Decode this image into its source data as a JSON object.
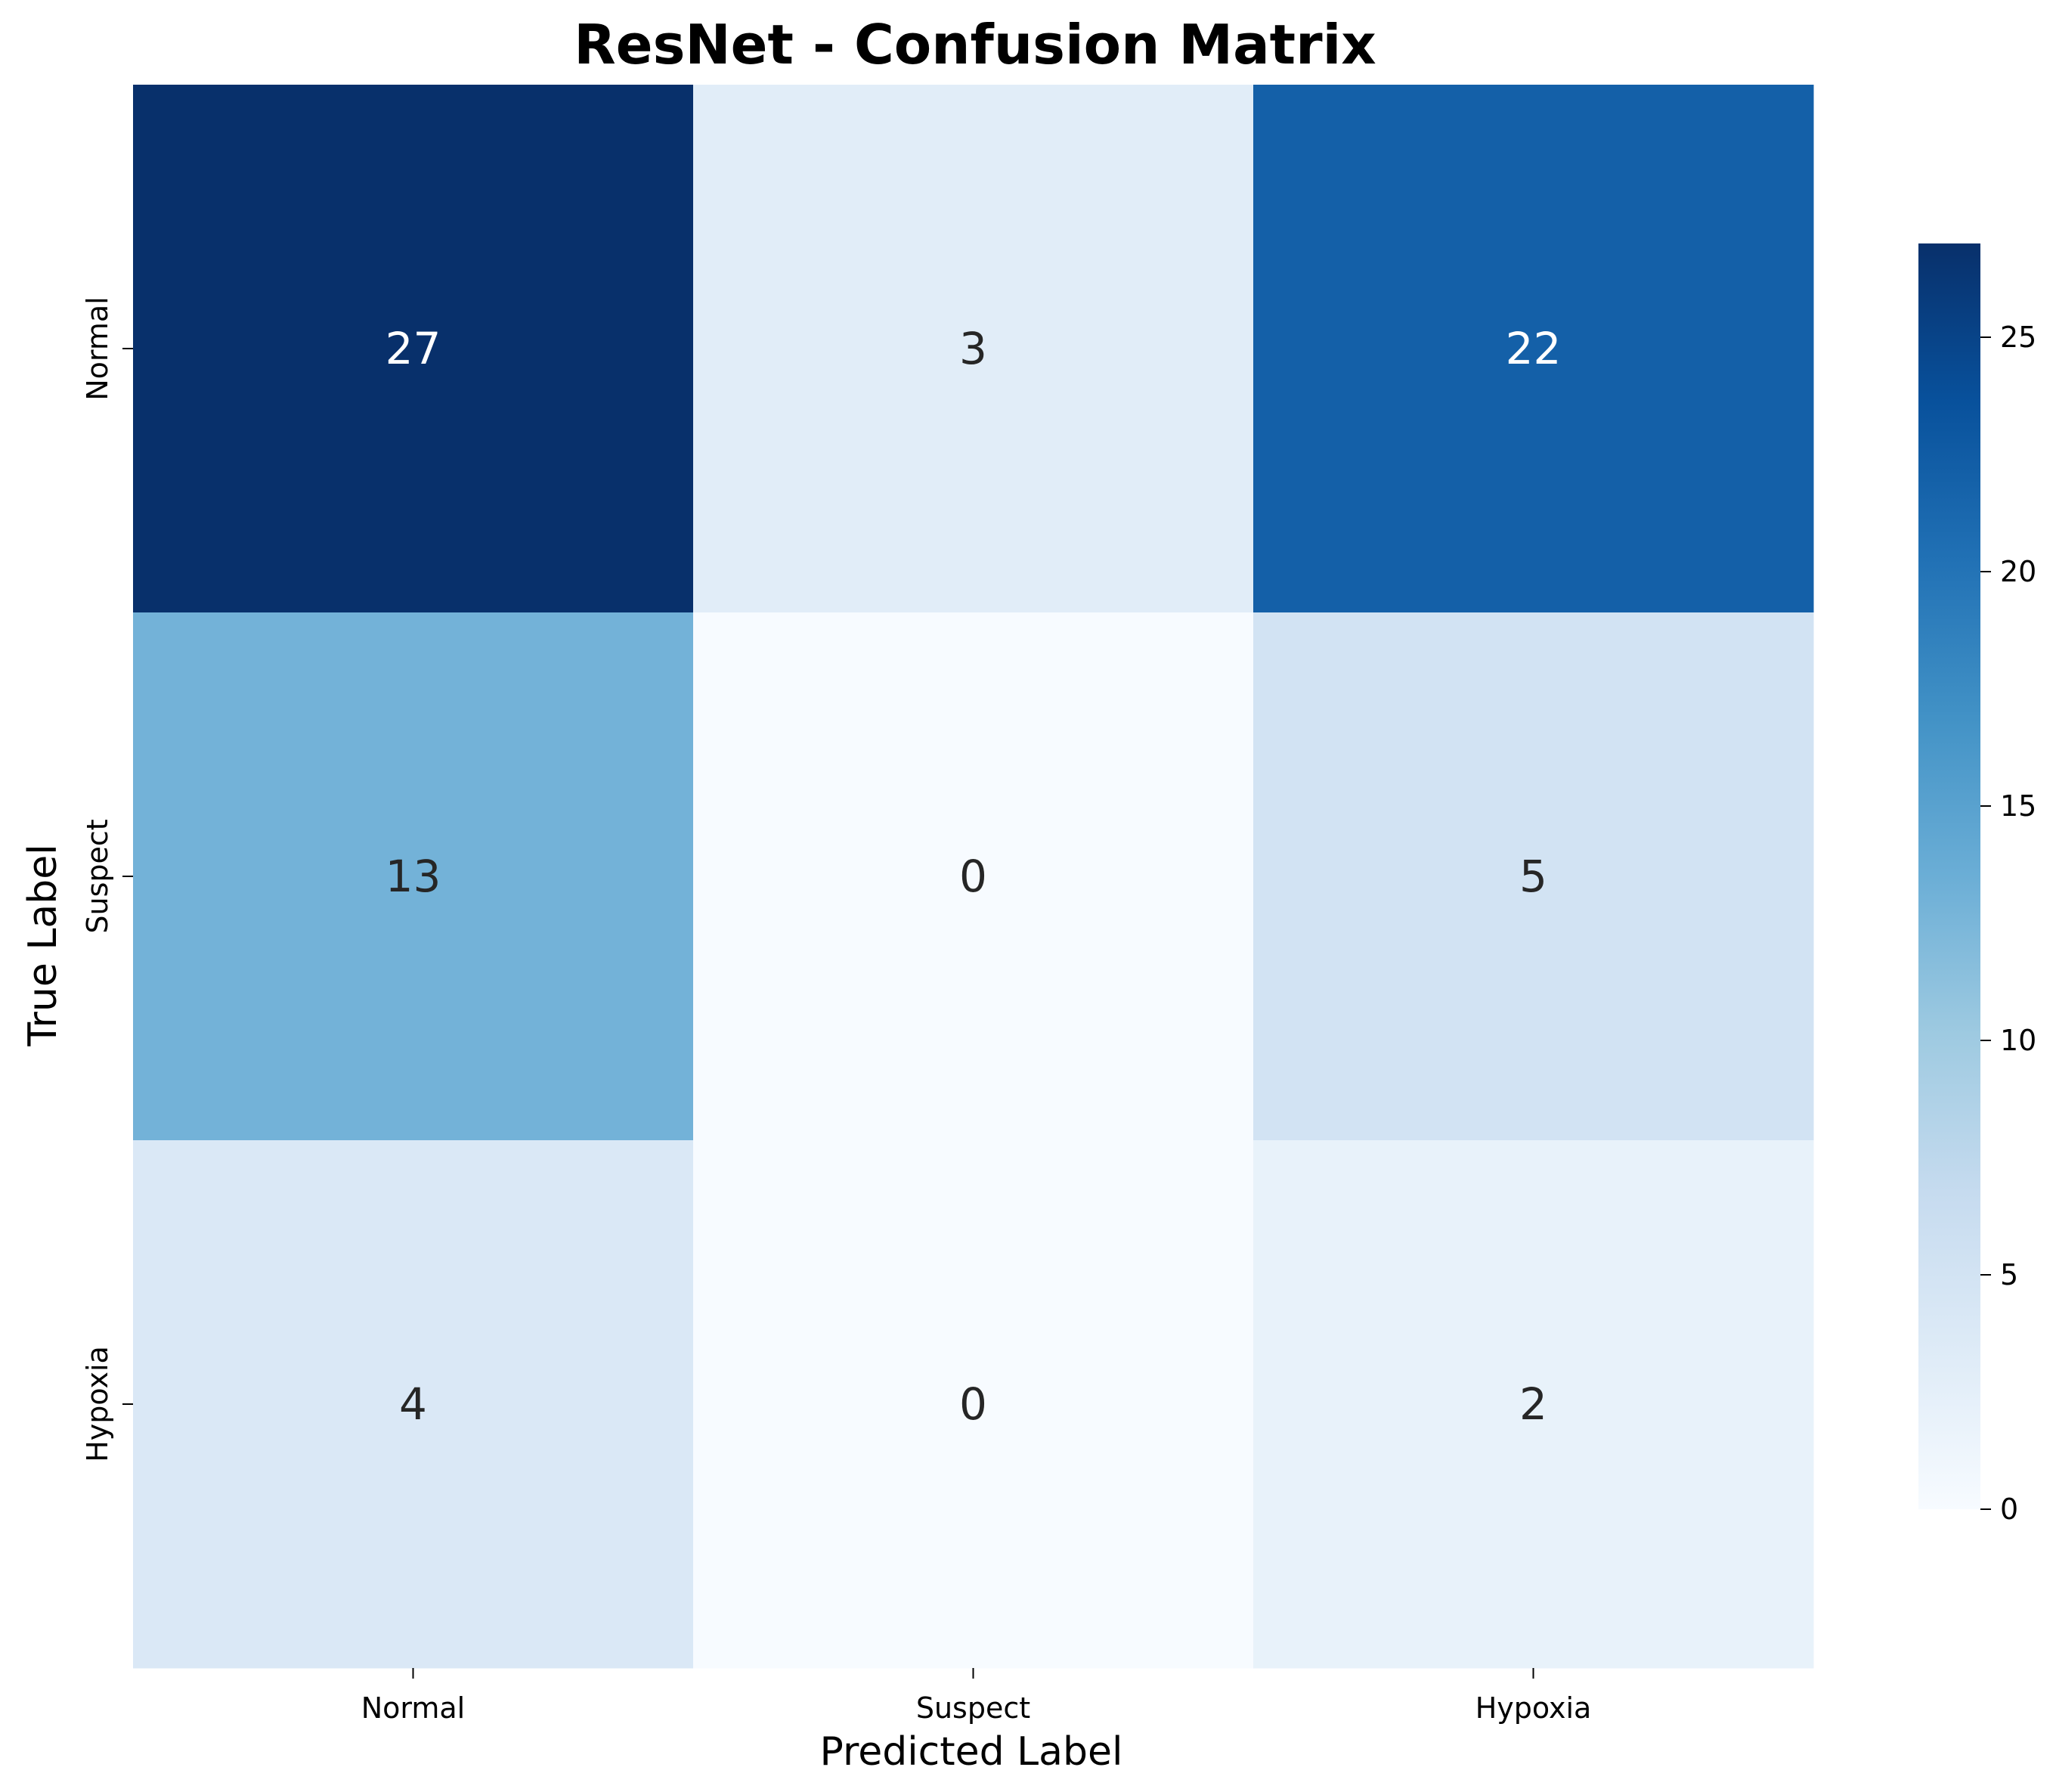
{
  "chart_data": {
    "type": "heatmap",
    "title": "ResNet - Confusion Matrix",
    "xlabel": "Predicted Label",
    "ylabel": "True Label",
    "x_categories": [
      "Normal",
      "Suspect",
      "Hypoxia"
    ],
    "y_categories": [
      "Normal",
      "Suspect",
      "Hypoxia"
    ],
    "values": [
      [
        27,
        3,
        22
      ],
      [
        13,
        0,
        5
      ],
      [
        4,
        0,
        2
      ]
    ],
    "colorbar": {
      "range": [
        0,
        27
      ],
      "ticks": [
        0,
        5,
        10,
        15,
        20,
        25
      ],
      "colormap": "Blues"
    },
    "grid": false
  }
}
